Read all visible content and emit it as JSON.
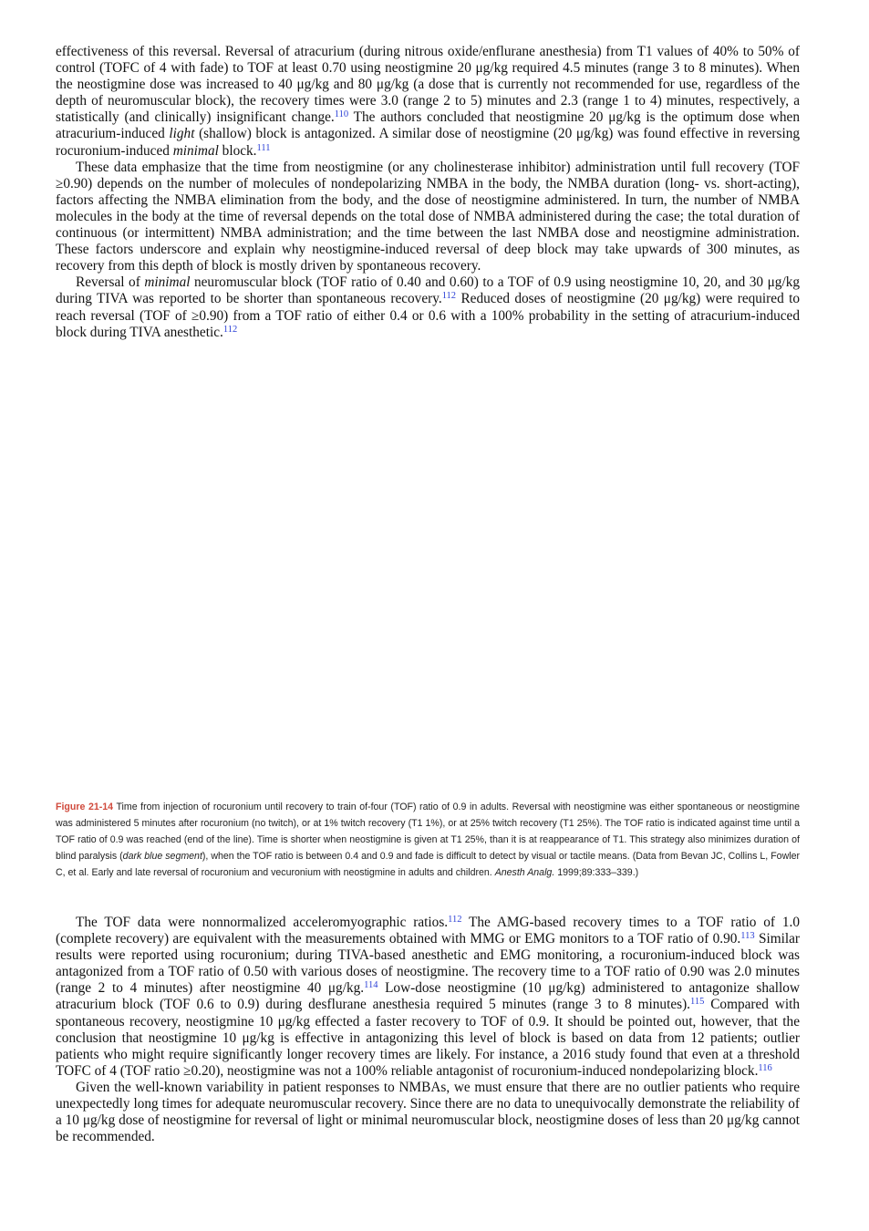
{
  "blocks": [
    {
      "paragraphs": [
        {
          "indent": false,
          "segments": [
            "effectiveness of this reversal. Reversal of atracurium (during nitrous oxide/enflurane anesthesia) from T1 values of 40% to 50% of control (TOFC of 4 with fade) to TOF at least 0.70 using neostigmine 20 μg/kg required 4.5 minutes (range 3 to 8 minutes). When the neostigmine dose was increased to 40 μg/kg and 80 μg/kg (a dose that is currently not recommended for use, regardless of the depth of neuromuscular block), the recovery times were 3.0 (range 2 to 5) minutes and 2.3 (range 1 to 4) minutes, respectively, a statistically (and clinically) insignificant change.",
            {
              "sup": "110"
            },
            " The authors concluded that neostigmine 20 μg/kg is the optimum dose when atracurium-induced ",
            {
              "em": "light"
            },
            " (shallow) block is antagonized. A similar dose of neostigmine (20 μg/kg) was found effective in reversing rocuronium-induced ",
            {
              "em": "minimal"
            },
            " block.",
            {
              "sup": "111"
            }
          ]
        },
        {
          "indent": true,
          "segments": [
            "These data emphasize that the time from neostigmine (or any cholinesterase inhibitor) administration until full recovery (TOF ≥0.90) depends on the number of molecules of nondepolarizing NMBA in the body, the NMBA duration (long- vs. short-acting), factors affecting the NMBA elimination from the body, and the dose of neostigmine administered. In turn, the number of NMBA molecules in the body at the time of reversal depends on the total dose of NMBA administered during the case; the total duration of continuous (or intermittent) NMBA administration; and the time between the last NMBA dose and neostigmine administration. These factors underscore and explain why neostigmine-induced reversal of deep block may take upwards of 300 minutes, as recovery from this depth of block is mostly driven by spontaneous recovery."
          ]
        },
        {
          "indent": true,
          "segments": [
            "Reversal of ",
            {
              "em": "minimal"
            },
            " neuromuscular block (TOF ratio of 0.40 and 0.60) to a TOF of 0.9 using neostigmine 10, 20, and 30 μg/kg during TIVA was reported to be shorter than spontaneous recovery.",
            {
              "sup": "112"
            },
            " Reduced doses of neostigmine (20 μg/kg) were required to reach reversal (TOF of ≥0.90) from a TOF ratio of either 0.4 or 0.6 with a 100% probability in the setting of atracurium-induced block during TIVA anesthetic.",
            {
              "sup": "112"
            }
          ]
        }
      ]
    },
    {
      "paragraphs": [
        {
          "indent": true,
          "segments": [
            "The TOF data were nonnormalized acceleromyographic ratios.",
            {
              "sup": "112"
            },
            " The AMG-based recovery times to a TOF ratio of 1.0 (complete recovery) are equivalent with the measurements obtained with MMG or EMG monitors to a TOF ratio of 0.90.",
            {
              "sup": "113"
            },
            " Similar results were reported using rocuronium; during TIVA-based anesthetic and EMG monitoring, a rocuronium-induced block was antagonized from a TOF ratio of 0.50 with various doses of neostigmine. The recovery time to a TOF ratio of 0.90 was 2.0 minutes (range 2 to 4 minutes) after neostigmine 40 μg/kg.",
            {
              "sup": "114"
            },
            " Low-dose neostigmine (10 μg/kg) administered to antagonize shallow atracurium block (TOF 0.6 to 0.9) during desflurane anesthesia required 5 minutes (range 3 to 8 minutes).",
            {
              "sup": "115"
            },
            " Compared with spontaneous recovery, neostigmine 10 μg/kg effected a faster recovery to TOF of 0.9. It should be pointed out, however, that the conclusion that neostigmine 10 μg/kg is effective in antagonizing this level of block is based on data from 12 patients; outlier patients who might require significantly longer recovery times are likely. For instance, a 2016 study found that even at a threshold TOFC of 4 (TOF ratio ≥0.20), neostigmine was not a 100% reliable antagonist of rocuronium-induced nondepolarizing block.",
            {
              "sup": "116"
            }
          ]
        },
        {
          "indent": true,
          "segments": [
            "Given the well-known variability in patient responses to NMBAs, we must ensure that there are no outlier patients who require unexpectedly long times for adequate neuromuscular recovery. Since there are no data to unequivocally demonstrate the reliability of a 10 μg/kg dose of neostigmine for reversal of light or minimal neuromuscular block, neostigmine doses of less than 20 μg/kg cannot be recommended."
          ]
        }
      ]
    }
  ],
  "figure": {
    "label": "Figure 21-14",
    "caption": [
      " Time from injection of rocuronium until recovery to train of-four (TOF) ratio of 0.9 in adults. Reversal with neostigmine was either spontaneous or neostigmine was administered 5 minutes after rocuronium (no twitch), or at 1% twitch recovery (T1 1%), or at 25% twitch recovery (T1 25%). The TOF ratio is indicated against time until a TOF ratio of 0.9 was reached (end of the line). Time is shorter when neostigmine is given at T1 25%, than it is at reappearance of T1. This strategy also minimizes duration of blind paralysis (",
      {
        "em": "dark blue segment"
      },
      "), when the TOF ratio is between 0.4 and 0.9 and fade is difficult to detect by visual or tactile means. (Data from Bevan JC, Collins L, Fowler C, et al. Early and late reversal of rocuronium and vecuronium with neostigmine in adults and children. ",
      {
        "em": "Anesth Analg."
      },
      " 1999;89:333–339.)"
    ]
  }
}
